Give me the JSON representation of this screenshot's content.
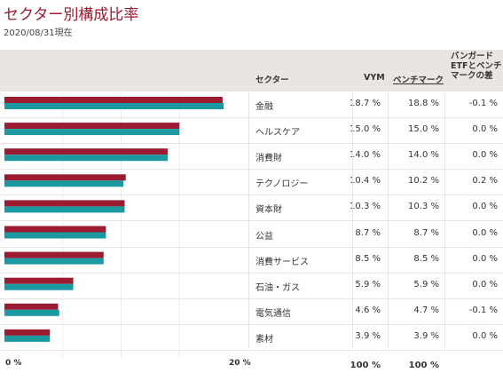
{
  "title": "セクター別構成比率",
  "as_of": "2020/08/31現在",
  "headers": {
    "sector": "セクター",
    "vym": "VYM",
    "benchmark": "ベンチマーク",
    "diff": "バンガードETFとベンチマークの差"
  },
  "colors": {
    "vym": "#9b1b30",
    "benchmark": "#1a9aa0"
  },
  "chart_data": {
    "type": "bar",
    "orientation": "horizontal",
    "categories": [
      "金融",
      "ヘルスケア",
      "消費財",
      "テクノロジー",
      "資本財",
      "公益",
      "消費サービス",
      "石油・ガス",
      "電気通信",
      "素材"
    ],
    "series": [
      {
        "name": "VYM",
        "values": [
          18.7,
          15.0,
          14.0,
          10.4,
          10.3,
          8.7,
          8.5,
          5.9,
          4.6,
          3.9
        ]
      },
      {
        "name": "ベンチマーク",
        "values": [
          18.8,
          15.0,
          14.0,
          10.2,
          10.3,
          8.7,
          8.5,
          5.9,
          4.7,
          3.9
        ]
      }
    ],
    "xlim": [
      0,
      20
    ],
    "x_tick_labels": [
      "0 %",
      "20 %"
    ]
  },
  "rows": [
    {
      "sector": "金融",
      "vym": "18.7 %",
      "bench": "18.8 %",
      "diff": "-0.1 %"
    },
    {
      "sector": "ヘルスケア",
      "vym": "15.0 %",
      "bench": "15.0 %",
      "diff": "0.0 %"
    },
    {
      "sector": "消費財",
      "vym": "14.0 %",
      "bench": "14.0 %",
      "diff": "0.0 %"
    },
    {
      "sector": "テクノロジー",
      "vym": "10.4 %",
      "bench": "10.2 %",
      "diff": "0.2 %"
    },
    {
      "sector": "資本財",
      "vym": "10.3 %",
      "bench": "10.3 %",
      "diff": "0.0 %"
    },
    {
      "sector": "公益",
      "vym": "8.7 %",
      "bench": "8.7 %",
      "diff": "0.0 %"
    },
    {
      "sector": "消費サービス",
      "vym": "8.5 %",
      "bench": "8.5 %",
      "diff": "0.0 %"
    },
    {
      "sector": "石油・ガス",
      "vym": "5.9 %",
      "bench": "5.9 %",
      "diff": "0.0 %"
    },
    {
      "sector": "電気通信",
      "vym": "4.6 %",
      "bench": "4.7 %",
      "diff": "-0.1 %"
    },
    {
      "sector": "素材",
      "vym": "3.9 %",
      "bench": "3.9 %",
      "diff": "0.0 %"
    }
  ],
  "totals": {
    "vym": "100 %",
    "bench": "100 %"
  }
}
